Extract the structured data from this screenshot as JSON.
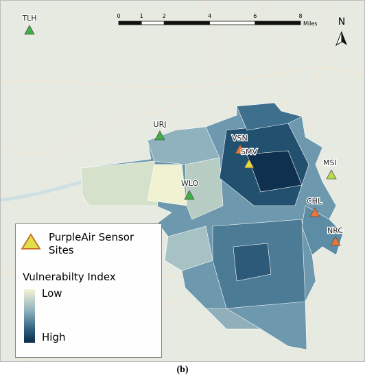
{
  "scale_bar": {
    "ticks": [
      0,
      1,
      2,
      4,
      6,
      8
    ],
    "unit": "Miles"
  },
  "north": "N",
  "sites": [
    {
      "name": "TLH",
      "color": "#3cb043"
    },
    {
      "name": "URJ",
      "color": "#3cb043"
    },
    {
      "name": "VSN",
      "color": "#e8773a"
    },
    {
      "name": "SMV",
      "color": "#e8d83a"
    },
    {
      "name": "MSI",
      "color": "#b8e04a"
    },
    {
      "name": "WLO",
      "color": "#3cb043"
    },
    {
      "name": "CHL",
      "color": "#e8773a"
    },
    {
      "name": "NRC",
      "color": "#e8773a"
    }
  ],
  "legend": {
    "sites_label": "PurpleAir Sensor Sites",
    "index_title": "Vulnerabilty Index",
    "low": "Low",
    "high": "High"
  },
  "caption": "(b)"
}
